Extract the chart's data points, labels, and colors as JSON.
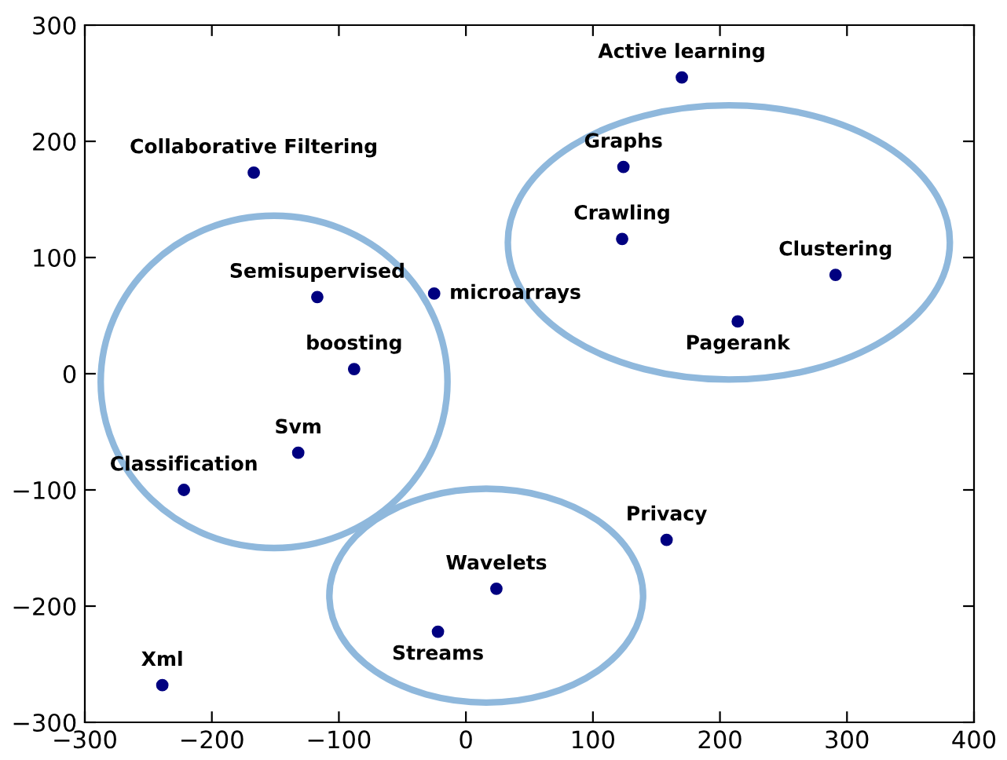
{
  "chart_data": {
    "type": "scatter",
    "marker": "circle",
    "grid": false,
    "legend": false,
    "xlim": [
      -300,
      400
    ],
    "xticks": [
      -300,
      -200,
      -100,
      0,
      100,
      200,
      300,
      400
    ],
    "ylim": [
      -300,
      300
    ],
    "yticks": [
      -300,
      -200,
      -100,
      0,
      100,
      200,
      300
    ],
    "series": [
      {
        "name": "Active learning",
        "color": "#000080",
        "x": [
          170
        ],
        "values": [
          255
        ]
      },
      {
        "name": "Collaborative Filtering",
        "color": "#000080",
        "x": [
          -167
        ],
        "values": [
          173
        ]
      },
      {
        "name": "Graphs",
        "color": "#000080",
        "x": [
          124
        ],
        "values": [
          178
        ]
      },
      {
        "name": "Crawling",
        "color": "#000080",
        "x": [
          123
        ],
        "values": [
          116
        ]
      },
      {
        "name": "Clustering",
        "color": "#000080",
        "x": [
          291
        ],
        "values": [
          85
        ]
      },
      {
        "name": "Pagerank",
        "color": "#000080",
        "x": [
          214
        ],
        "values": [
          45
        ]
      },
      {
        "name": "Semisupervised",
        "color": "#000080",
        "x": [
          -117
        ],
        "values": [
          66
        ]
      },
      {
        "name": "microarrays",
        "color": "#000080",
        "x": [
          -25
        ],
        "values": [
          69
        ]
      },
      {
        "name": "boosting",
        "color": "#000080",
        "x": [
          -88
        ],
        "values": [
          4
        ]
      },
      {
        "name": "Svm",
        "color": "#000080",
        "x": [
          -132
        ],
        "values": [
          -68
        ]
      },
      {
        "name": "Classification",
        "color": "#000080",
        "x": [
          -222
        ],
        "values": [
          -100
        ]
      },
      {
        "name": "Privacy",
        "color": "#000080",
        "x": [
          158
        ],
        "values": [
          -143
        ]
      },
      {
        "name": "Wavelets",
        "color": "#000080",
        "x": [
          24
        ],
        "values": [
          -185
        ]
      },
      {
        "name": "Streams",
        "color": "#000080",
        "x": [
          -22
        ],
        "values": [
          -222
        ]
      },
      {
        "name": "Xml",
        "color": "#000080",
        "x": [
          -239
        ],
        "values": [
          -268
        ]
      }
    ]
  }
}
